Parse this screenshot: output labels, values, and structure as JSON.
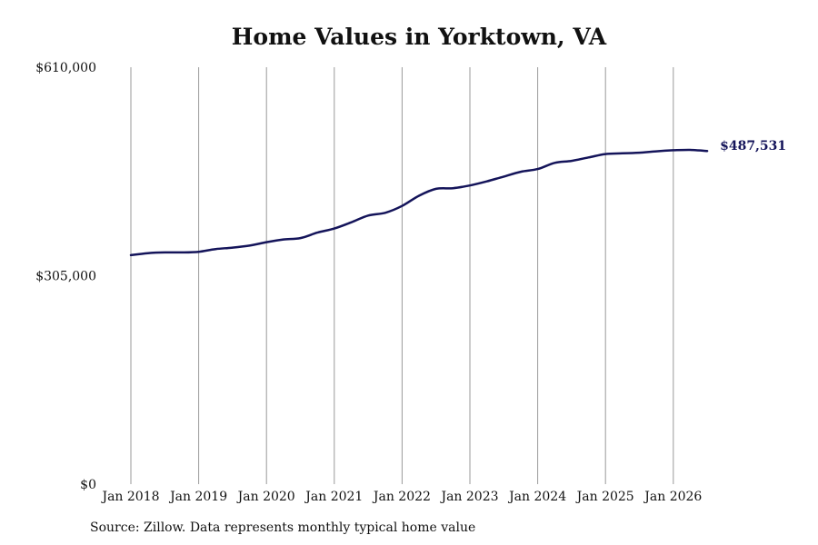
{
  "chart_data": {
    "type": "line",
    "title": "Home Values in Yorktown, VA",
    "source": "Source: Zillow. Data represents monthly typical home value",
    "y_ticks": [
      "$610,000",
      "$305,000",
      "$0"
    ],
    "y_tick_values": [
      610000,
      305000,
      0
    ],
    "ylim": [
      0,
      610000
    ],
    "x_ticks": [
      "Jan 2018",
      "Jan 2019",
      "Jan 2020",
      "Jan 2021",
      "Jan 2022",
      "Jan 2023",
      "Jan 2024",
      "Jan 2025",
      "Jan 2026"
    ],
    "grid": "vertical",
    "line_color": "#14145a",
    "end_label": "$487,531",
    "series": [
      {
        "x": [
          "2018-01",
          "2018-04",
          "2018-07",
          "2018-10",
          "2019-01",
          "2019-04",
          "2019-07",
          "2019-10",
          "2020-01",
          "2020-04",
          "2020-07",
          "2020-10",
          "2021-01",
          "2021-04",
          "2021-07",
          "2021-10",
          "2022-01",
          "2022-04",
          "2022-07",
          "2022-10",
          "2023-01",
          "2023-04",
          "2023-07",
          "2023-10",
          "2024-01",
          "2024-04",
          "2024-07",
          "2024-10",
          "2025-01",
          "2025-04",
          "2025-07",
          "2025-10",
          "2026-01",
          "2026-04",
          "2026-07"
        ],
        "y": [
          335000,
          338000,
          339000,
          339000,
          340000,
          344000,
          346000,
          349000,
          354000,
          358000,
          360000,
          368000,
          374000,
          383000,
          393000,
          397000,
          407000,
          422000,
          432000,
          433000,
          437000,
          443000,
          450000,
          457000,
          461000,
          470000,
          473000,
          478000,
          483000,
          484000,
          485000,
          487000,
          488500,
          489000,
          487531
        ]
      }
    ]
  }
}
